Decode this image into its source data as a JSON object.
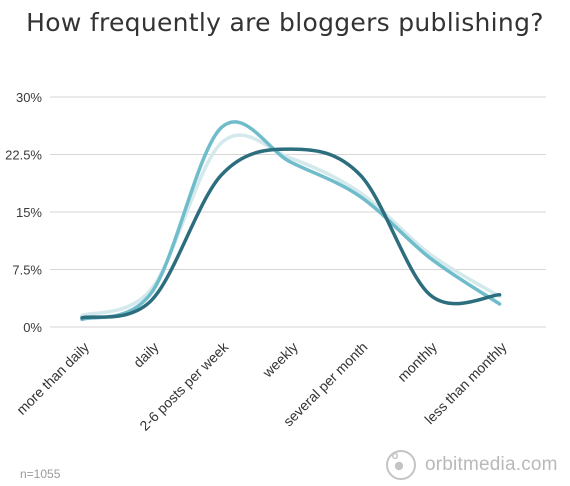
{
  "header": {
    "title": "How frequently are bloggers publishing?"
  },
  "footer": {
    "sample_size": "n=1055",
    "brand": "orbitmedia.com",
    "brand_icon": "orbit-logo-icon"
  },
  "colors": {
    "series_dark": "#2d6e7e",
    "series_mid": "#6fbccb",
    "series_light": "#d3e9ec",
    "grid": "#d6d6d6",
    "text": "#333333"
  },
  "chart_data": {
    "type": "line",
    "title": "How frequently are bloggers publishing?",
    "xlabel": "",
    "ylabel": "",
    "categories": [
      "more than daily",
      "daily",
      "2-6 posts per week",
      "weekly",
      "several per month",
      "monthly",
      "less than monthly"
    ],
    "y_ticks": [
      "0%",
      "7.5%",
      "15%",
      "22.5%",
      "30%"
    ],
    "ylim": [
      0,
      30
    ],
    "grid": true,
    "legend": "none",
    "smooth": true,
    "series": [
      {
        "color": "#d3e9ec",
        "values": [
          1.5,
          5.0,
          24.0,
          22.0,
          17.5,
          9.5,
          4.0
        ]
      },
      {
        "color": "#6fbccb",
        "values": [
          1.0,
          4.5,
          26.0,
          21.5,
          17.0,
          9.0,
          3.0
        ]
      },
      {
        "color": "#2d6e7e",
        "values": [
          1.2,
          3.5,
          19.8,
          23.2,
          19.8,
          4.2,
          4.2
        ]
      }
    ]
  }
}
